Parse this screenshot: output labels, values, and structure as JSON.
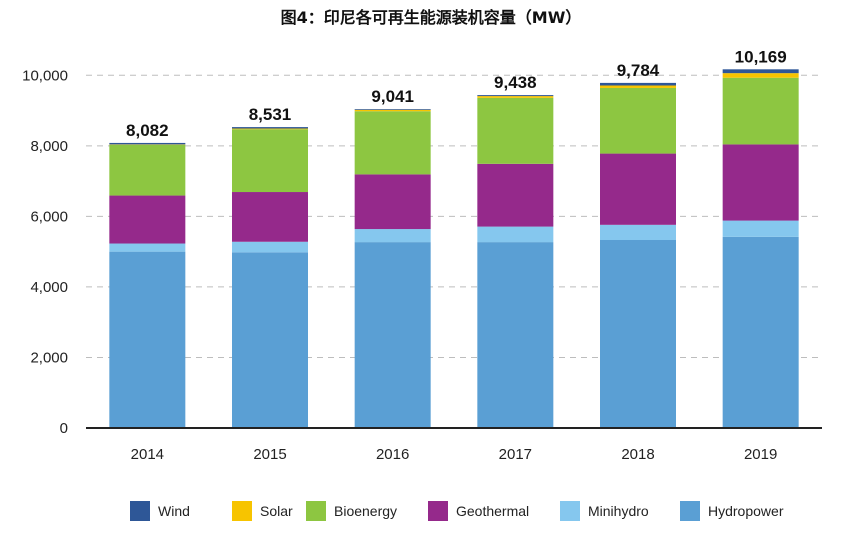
{
  "chart_data": {
    "type": "bar",
    "stacked": true,
    "title": "图4：印尼各可再生能源装机容量（MW）",
    "categories": [
      "2014",
      "2015",
      "2016",
      "2017",
      "2018",
      "2019"
    ],
    "totals": [
      "8,082",
      "8,531",
      "9,041",
      "9,438",
      "9,784",
      "10,169"
    ],
    "series": [
      {
        "name": "Hydropower",
        "color": "#5a9fd4",
        "values": [
          5000,
          4980,
          5270,
          5270,
          5330,
          5420
        ]
      },
      {
        "name": "Minihydro",
        "color": "#85c7ee",
        "values": [
          230,
          300,
          370,
          440,
          430,
          460
        ]
      },
      {
        "name": "Geothermal",
        "color": "#95298b",
        "values": [
          1360,
          1410,
          1550,
          1780,
          2020,
          2160
        ]
      },
      {
        "name": "Bioenergy",
        "color": "#8dc641",
        "values": [
          1440,
          1780,
          1790,
          1870,
          1860,
          1890
        ]
      },
      {
        "name": "Solar",
        "color": "#f7c400",
        "values": [
          10,
          20,
          40,
          50,
          70,
          130
        ]
      },
      {
        "name": "Wind",
        "color": "#2e5797",
        "values": [
          42,
          41,
          21,
          28,
          74,
          109
        ]
      }
    ],
    "legend_order": [
      "Wind",
      "Solar",
      "Bioenergy",
      "Geothermal",
      "Minihydro",
      "Hydropower"
    ],
    "yticks": [
      "0",
      "2,000",
      "4,000",
      "6,000",
      "8,000",
      "10,000"
    ],
    "ylim": [
      0,
      11000
    ],
    "grid": true,
    "legend_position": "bottom"
  }
}
